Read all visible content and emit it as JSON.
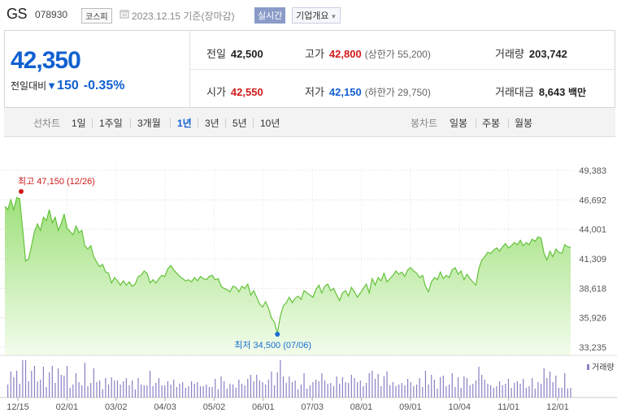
{
  "header": {
    "ticker": "GS",
    "code": "078930",
    "market": "코스피",
    "date_text": "2023.12.15 기준(장마감)",
    "realtime_label": "실시간",
    "company_info_label": "기업개요"
  },
  "price": {
    "current": "42,350",
    "change_label": "전일대비",
    "change_amount": "150",
    "change_pct": "-0.35%"
  },
  "stats": {
    "prev_close": {
      "label": "전일",
      "value": "42,500"
    },
    "open": {
      "label": "시가",
      "value": "42,550"
    },
    "high": {
      "label": "고가",
      "value": "42,800",
      "sub": "(상한가 55,200)"
    },
    "low": {
      "label": "저가",
      "value": "42,150",
      "sub": "(하한가 29,750)"
    },
    "volume": {
      "label": "거래량",
      "value": "203,742"
    },
    "turnover": {
      "label": "거래대금",
      "value": "8,643",
      "unit": "백만"
    }
  },
  "tabs": {
    "line_header": "선차트",
    "line_periods": [
      "1일",
      "1주일",
      "3개월",
      "1년",
      "3년",
      "5년",
      "10년"
    ],
    "active_period": "1년",
    "candle_header": "봉차트",
    "candle_periods": [
      "일봉",
      "주봉",
      "월봉"
    ]
  },
  "chart_data": {
    "type": "area",
    "y_ticks": [
      "49,383",
      "46,692",
      "44,001",
      "41,309",
      "38,618",
      "35,926",
      "33,235"
    ],
    "ylim": [
      33235,
      49383
    ],
    "x_ticks": [
      "12/15",
      "02/01",
      "03/02",
      "04/03",
      "05/02",
      "06/01",
      "07/03",
      "08/01",
      "09/01",
      "10/04",
      "11/01",
      "12/01"
    ],
    "max_label": "최고 47,150 (12/26)",
    "min_label": "최저 34,500 (07/06)",
    "volume_legend": "거래량",
    "series": [
      {
        "values": [
          46100,
          45800,
          46700,
          45800,
          46900,
          46800,
          44000,
          41100,
          41300,
          42500,
          43800,
          44500,
          43900,
          45100,
          44800,
          45800,
          44600,
          45100,
          43900,
          44500,
          45400,
          44100,
          43800,
          43500,
          44300,
          43700,
          43900,
          42500,
          42200,
          42500,
          41500,
          41000,
          40600,
          40800,
          40100,
          40000,
          39100,
          39600,
          39300,
          38900,
          39300,
          38900,
          39200,
          38800,
          39000,
          39700,
          39800,
          40200,
          40000,
          39100,
          39400,
          39100,
          39500,
          39800,
          39700,
          40400,
          40700,
          40300,
          40000,
          39700,
          39500,
          39300,
          39400,
          39200,
          39600,
          39300,
          39700,
          39500,
          39400,
          39700,
          39800,
          39400,
          39500,
          38800,
          38600,
          38500,
          38300,
          38800,
          38700,
          38300,
          38800,
          38600,
          39000,
          38000,
          38400,
          37800,
          37200,
          36900,
          37400,
          36800,
          35900,
          35500,
          34500,
          36100,
          37000,
          37300,
          37800,
          37300,
          37700,
          37900,
          37600,
          38400,
          38200,
          38000,
          37800,
          38500,
          38900,
          38200,
          38800,
          39000,
          38400,
          38600,
          38000,
          37500,
          38200,
          38400,
          37900,
          38700,
          38300,
          37800,
          38200,
          38600,
          39000,
          38200,
          39500,
          38900,
          39600,
          39300,
          40000,
          39200,
          39500,
          39800,
          40200,
          39900,
          40100,
          39700,
          40300,
          40500,
          40200,
          40000,
          39600,
          39800,
          38800,
          38300,
          39200,
          39600,
          39400,
          40100,
          39500,
          39800,
          39600,
          40300,
          40500,
          39900,
          40200,
          39400,
          39900,
          39500,
          39200,
          38900,
          40400,
          41200,
          41500,
          41900,
          41800,
          42100,
          42300,
          42000,
          42400,
          42700,
          42300,
          42500,
          42800,
          42600,
          43000,
          42500,
          42800,
          42600,
          43100,
          42900,
          43300,
          43200,
          41800,
          41200,
          42000,
          41500,
          42200,
          41900,
          41800,
          42600,
          42400,
          42350
        ]
      }
    ]
  }
}
